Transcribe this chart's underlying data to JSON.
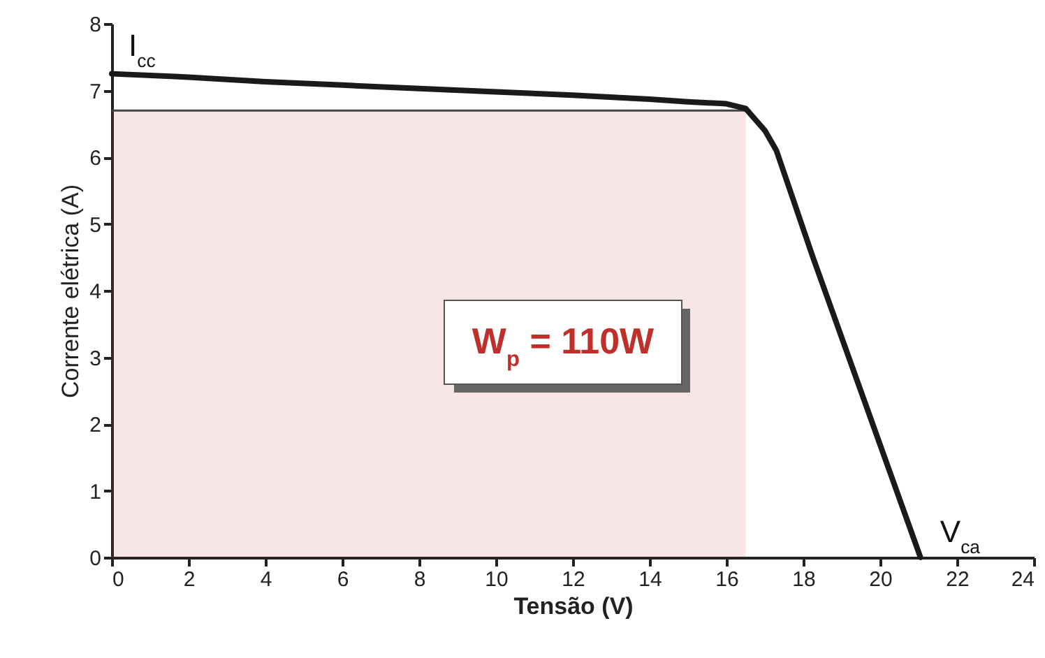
{
  "chart_data": {
    "type": "line",
    "xlabel": "Tensão (V)",
    "ylabel": "Corrente elétrica (A)",
    "xlim": [
      0,
      24
    ],
    "xticks": [
      0,
      2,
      4,
      6,
      8,
      10,
      12,
      14,
      16,
      18,
      20,
      22,
      24
    ],
    "ylim": [
      0,
      8
    ],
    "yticks": [
      0,
      1,
      2,
      3,
      4,
      5,
      6,
      7,
      8
    ],
    "series": [
      {
        "type": "area",
        "color": "#d05050",
        "x": [
          0,
          16.5,
          16.5
        ],
        "values": [
          6.7,
          6.7,
          0
        ]
      },
      {
        "color": "#1a1a1a",
        "x": [
          0,
          2,
          4,
          6,
          8,
          10,
          12,
          14,
          15,
          16,
          16.5,
          17,
          17.3,
          18.25,
          21.05
        ],
        "values": [
          7.25,
          7.2,
          7.13,
          7.08,
          7.03,
          6.98,
          6.93,
          6.87,
          6.83,
          6.8,
          6.73,
          6.4,
          6.1,
          4.5,
          0
        ]
      }
    ],
    "annotations": [
      "W$_{p}$ = 110W",
      {
        "text": "I$_{cc}$",
        "x": 0,
        "y": 7.25
      },
      {
        "text": "V$_{ca}$",
        "x": 21.05,
        "y": 0
      }
    ]
  }
}
